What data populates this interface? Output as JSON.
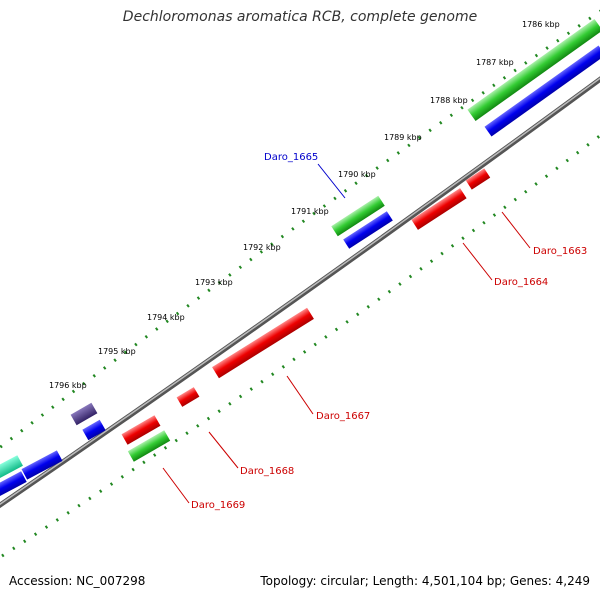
{
  "title": "Dechloromonas aromatica RCB, complete genome",
  "footer": {
    "accession": "Accession: NC_007298",
    "summary": "Topology: circular; Length: 4,501,104 bp; Genes: 4,249"
  },
  "ticks": [
    "1786 kbp",
    "1787 kbp",
    "1788 kbp",
    "1789 kbp",
    "1790 kbp",
    "1791 kbp",
    "1792 kbp",
    "1793 kbp",
    "1794 kbp",
    "1795 kbp",
    "1796 kbp"
  ],
  "gene_labels": [
    {
      "text": "Daro_1665",
      "color": "#0000cc"
    },
    {
      "text": "Daro_1663",
      "color": "#cc0000"
    },
    {
      "text": "Daro_1664",
      "color": "#cc0000"
    },
    {
      "text": "Daro_1667",
      "color": "#cc0000"
    },
    {
      "text": "Daro_1668",
      "color": "#cc0000"
    },
    {
      "text": "Daro_1669",
      "color": "#cc0000"
    }
  ],
  "colors": {
    "forward_cds": "#0000ee",
    "forward_rna": "#22cc22",
    "reverse_cds": "#ee0000",
    "reverse_rna": "#22cc22",
    "other": "#553388",
    "teal": "#22ddaa",
    "backbone": "#888888",
    "tick_dots": "#228822"
  }
}
